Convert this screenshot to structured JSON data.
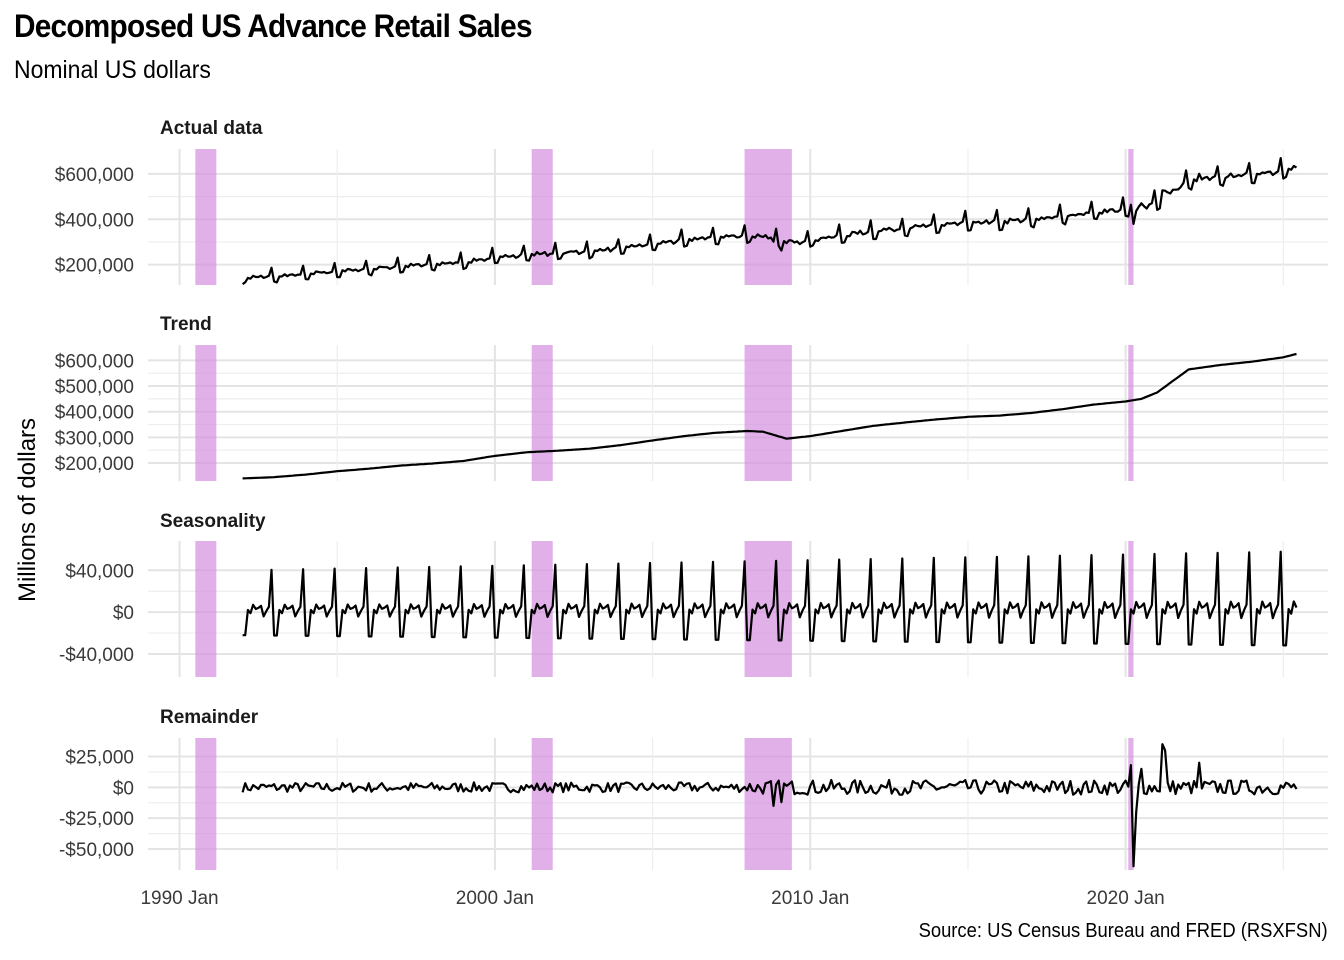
{
  "chart_data": {
    "type": "line",
    "title": "Decomposed US Advance Retail Sales",
    "subtitle": "Nominal US dollars",
    "ylabel": "Millions of dollars",
    "xlabel": "",
    "caption": "Source: US Census Bureau and FRED (RSXFSN)",
    "x_range": [
      "1989-01",
      "2026-06"
    ],
    "x_ticks": [
      {
        "value": "1990-01",
        "label": "1990 Jan"
      },
      {
        "value": "2000-01",
        "label": "2000 Jan"
      },
      {
        "value": "2010-01",
        "label": "2010 Jan"
      },
      {
        "value": "2020-01",
        "label": "2020 Jan"
      }
    ],
    "recessions": [
      {
        "start": "1990-07",
        "end": "1991-03"
      },
      {
        "start": "2001-03",
        "end": "2001-11"
      },
      {
        "start": "2007-12",
        "end": "2009-06"
      },
      {
        "start": "2020-02",
        "end": "2020-04"
      }
    ],
    "grid": true,
    "legend": "none",
    "panels": [
      {
        "name": "Actual data",
        "ylim": [
          110000,
          710000
        ],
        "y_ticks": [
          {
            "value": 200000,
            "label": "$200,000"
          },
          {
            "value": 400000,
            "label": "$400,000"
          },
          {
            "value": 600000,
            "label": "$600,000"
          }
        ],
        "series": {
          "name": "Actual data",
          "x": [
            "1992-01",
            "1993-01",
            "1994-01",
            "1995-01",
            "1996-01",
            "1997-01",
            "1998-01",
            "1999-01",
            "2000-01",
            "2001-01",
            "2002-01",
            "2003-01",
            "2004-01",
            "2005-01",
            "2006-01",
            "2007-01",
            "2008-01",
            "2008-07",
            "2009-04",
            "2010-01",
            "2011-01",
            "2012-01",
            "2013-01",
            "2014-01",
            "2015-01",
            "2016-01",
            "2017-01",
            "2018-01",
            "2019-01",
            "2020-01",
            "2020-04",
            "2020-07",
            "2021-01",
            "2022-01",
            "2023-01",
            "2024-01",
            "2025-01",
            "2025-06"
          ],
          "y": [
            130000,
            150000,
            160000,
            170000,
            180000,
            190000,
            200000,
            210000,
            230000,
            240000,
            250000,
            255000,
            270000,
            290000,
            305000,
            315000,
            320000,
            325000,
            290000,
            305000,
            320000,
            340000,
            355000,
            365000,
            375000,
            380000,
            395000,
            410000,
            420000,
            430000,
            380000,
            450000,
            490000,
            550000,
            590000,
            600000,
            610000,
            630000
          ]
        }
      },
      {
        "name": "Trend",
        "ylim": [
          130000,
          660000
        ],
        "y_ticks": [
          {
            "value": 200000,
            "label": "$200,000"
          },
          {
            "value": 300000,
            "label": "$300,000"
          },
          {
            "value": 400000,
            "label": "$400,000"
          },
          {
            "value": 500000,
            "label": "$500,000"
          },
          {
            "value": 600000,
            "label": "$600,000"
          }
        ],
        "series": {
          "name": "Trend",
          "x": [
            "1992-01",
            "1993-01",
            "1994-01",
            "1995-01",
            "1996-01",
            "1997-01",
            "1998-01",
            "1999-01",
            "2000-01",
            "2001-01",
            "2002-01",
            "2003-01",
            "2004-01",
            "2005-01",
            "2006-01",
            "2007-01",
            "2008-01",
            "2008-07",
            "2009-04",
            "2010-01",
            "2011-01",
            "2012-01",
            "2013-01",
            "2014-01",
            "2015-01",
            "2016-01",
            "2017-01",
            "2018-01",
            "2019-01",
            "2020-01",
            "2020-07",
            "2021-01",
            "2021-07",
            "2022-01",
            "2023-01",
            "2024-01",
            "2025-01",
            "2025-06"
          ],
          "y": [
            140000,
            145000,
            155000,
            168000,
            178000,
            190000,
            198000,
            208000,
            228000,
            242000,
            248000,
            256000,
            270000,
            288000,
            305000,
            318000,
            325000,
            322000,
            295000,
            305000,
            325000,
            345000,
            358000,
            370000,
            380000,
            385000,
            395000,
            410000,
            428000,
            440000,
            450000,
            475000,
            520000,
            565000,
            582000,
            595000,
            612000,
            625000
          ]
        }
      },
      {
        "name": "Seasonality",
        "ylim": [
          -62000,
          68000
        ],
        "y_ticks": [
          {
            "value": -40000,
            "label": "-$40,000"
          },
          {
            "value": 0,
            "label": "$0"
          },
          {
            "value": 40000,
            "label": "$40,000"
          }
        ],
        "series": {
          "name": "Seasonality",
          "start_amplitude": 1.0,
          "end_amplitude": 1.45,
          "monthly_pattern": {
            "months": [
              "Jan",
              "Feb",
              "Mar",
              "Apr",
              "May",
              "Jun",
              "Jul",
              "Aug",
              "Sep",
              "Oct",
              "Nov",
              "Dec"
            ],
            "values": [
              -22000,
              -22000,
              2000,
              -1000,
              7000,
              3000,
              4000,
              6000,
              -4000,
              1000,
              5000,
              40000
            ]
          }
        }
      },
      {
        "name": "Remainder",
        "ylim": [
          -67000,
          40000
        ],
        "y_ticks": [
          {
            "value": -50000,
            "label": "-$50,000"
          },
          {
            "value": -25000,
            "label": "-$25,000"
          },
          {
            "value": 0,
            "label": "$0"
          },
          {
            "value": 25000,
            "label": "$25,000"
          }
        ],
        "series": {
          "name": "Remainder",
          "noise_amplitude_before_2008": 4000,
          "noise_amplitude_after_2010": 6000,
          "events": [
            {
              "x": "2008-11",
              "y": -15000
            },
            {
              "x": "2009-02",
              "y": -12000
            },
            {
              "x": "2020-03",
              "y": 18000
            },
            {
              "x": "2020-04",
              "y": -64000
            },
            {
              "x": "2020-05",
              "y": -20000
            },
            {
              "x": "2020-07",
              "y": 15000
            },
            {
              "x": "2021-03",
              "y": 35000
            },
            {
              "x": "2021-04",
              "y": 30000
            },
            {
              "x": "2022-05",
              "y": 20000
            }
          ]
        }
      }
    ]
  }
}
